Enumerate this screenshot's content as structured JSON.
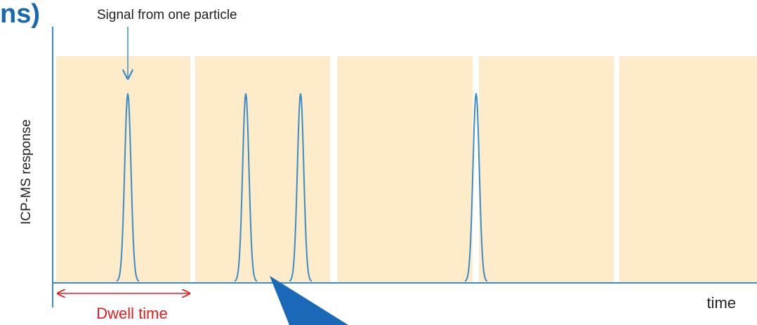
{
  "header": {
    "title": "ns)"
  },
  "diagram": {
    "annotation": "Signal from one particle",
    "y_label": "ICP-MS response",
    "x_label": "time",
    "dwell_label": "Dwell time"
  }
}
